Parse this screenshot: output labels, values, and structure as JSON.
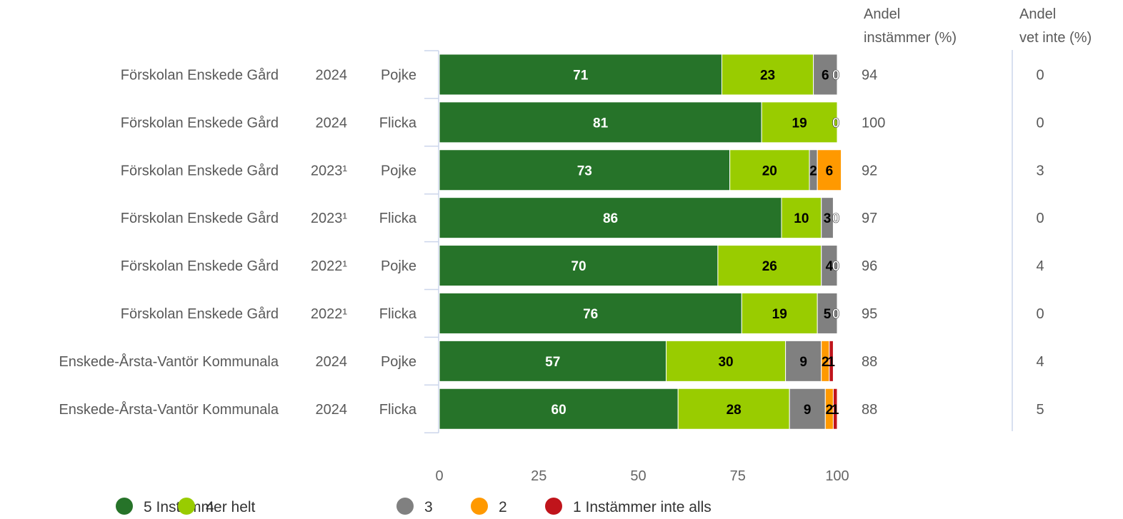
{
  "chart_data": {
    "type": "bar",
    "orientation": "horizontal",
    "stacked": true,
    "rows": [
      {
        "unit": "Förskolan Enskede Gård",
        "year": "2024",
        "gender": "Pojke"
      },
      {
        "unit": "Förskolan Enskede Gård",
        "year": "2024",
        "gender": "Flicka"
      },
      {
        "unit": "Förskolan Enskede Gård",
        "year": "2023¹",
        "gender": "Pojke"
      },
      {
        "unit": "Förskolan Enskede Gård",
        "year": "2023¹",
        "gender": "Flicka"
      },
      {
        "unit": "Förskolan Enskede Gård",
        "year": "2022¹",
        "gender": "Pojke"
      },
      {
        "unit": "Förskolan Enskede Gård",
        "year": "2022¹",
        "gender": "Flicka"
      },
      {
        "unit": "Enskede-Årsta-Vantör Kommunala",
        "year": "2024",
        "gender": "Pojke"
      },
      {
        "unit": "Enskede-Årsta-Vantör Kommunala",
        "year": "2024",
        "gender": "Flicka"
      }
    ],
    "series": [
      {
        "name": "5 Instämmer helt",
        "color": "#267329",
        "label_color": "#ffffff",
        "values": [
          71,
          81,
          73,
          86,
          70,
          76,
          57,
          60
        ]
      },
      {
        "name": "4",
        "color": "#99cc00",
        "label_color": "#000000",
        "values": [
          23,
          19,
          20,
          10,
          26,
          19,
          30,
          28
        ]
      },
      {
        "name": "3",
        "color": "#808080",
        "label_color": "#000000",
        "values": [
          6,
          0,
          2,
          3,
          4,
          5,
          9,
          9
        ]
      },
      {
        "name": "2",
        "color": "#ff9900",
        "label_color": "#000000",
        "values": [
          0,
          0,
          6,
          0,
          0,
          0,
          2,
          2
        ]
      },
      {
        "name": "1 Instämmer inte alls",
        "color": "#c0141b",
        "label_color": "#000000",
        "values": [
          0,
          0,
          0,
          0,
          0,
          0,
          1,
          1
        ]
      }
    ],
    "xlim": [
      0,
      100
    ],
    "xticks": [
      "0",
      "25",
      "50",
      "75",
      "100"
    ],
    "columns": {
      "agree_header": [
        "Andel",
        "instämmer (%)"
      ],
      "dontknow_header": [
        "Andel",
        "vet inte (%)"
      ],
      "agree": [
        "94",
        "100",
        "92",
        "97",
        "96",
        "95",
        "88",
        "88"
      ],
      "dontknow": [
        "0",
        "0",
        "3",
        "0",
        "4",
        "0",
        "4",
        "5"
      ]
    },
    "legend_position": "bottom",
    "grid": false
  }
}
